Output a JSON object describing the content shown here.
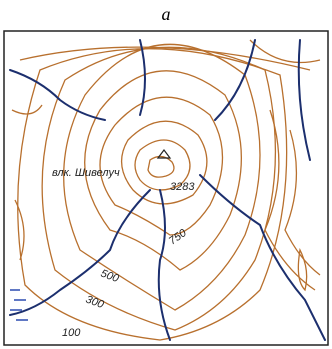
{
  "title": "a",
  "map": {
    "volcano": "влк. Шивелуч",
    "summit_elevation": 3283,
    "contour_labels": [
      750,
      500,
      300,
      100
    ]
  }
}
